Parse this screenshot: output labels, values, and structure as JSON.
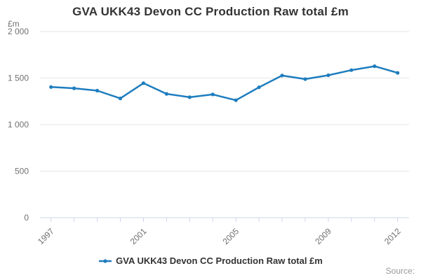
{
  "page": {
    "title": "GVA UKK43 Devon CC Production Raw total £m",
    "y_axis_unit_label": "£m",
    "source_label": "Source:"
  },
  "legend": {
    "position": "bottom-center",
    "items": [
      {
        "label": "GVA UKK43 Devon CC Production Raw total £m",
        "marker": "line-dot-icon"
      }
    ]
  },
  "colors": {
    "series_blue": "#1e7dbe",
    "grid_line": "#e6e6e6",
    "axis_line": "#ccd6eb",
    "tick_label": "#707070",
    "title_text": "#333333",
    "legend_text": "#333333",
    "source_text": "#999999",
    "background": "#ffffff"
  },
  "chart_data": {
    "type": "line",
    "title": "GVA UKK43 Devon CC Production Raw total £m",
    "x": [
      1997,
      1998,
      1999,
      2000,
      2001,
      2002,
      2003,
      2004,
      2005,
      2006,
      2007,
      2008,
      2009,
      2010,
      2011,
      2012
    ],
    "series": [
      {
        "name": "GVA UKK43 Devon CC Production Raw total £m",
        "values": [
          1404,
          1390,
          1365,
          1281,
          1445,
          1330,
          1294,
          1324,
          1262,
          1401,
          1527,
          1489,
          1530,
          1585,
          1627,
          1556
        ]
      }
    ],
    "xlabel": "",
    "ylabel": "£m",
    "ylim": [
      0,
      2000
    ],
    "y_ticks": [
      0,
      500,
      1000,
      1500,
      2000
    ],
    "y_tick_labels": [
      "0",
      "500",
      "1 000",
      "1 500",
      "2 000"
    ],
    "x_tick_years_labeled": [
      1997,
      2001,
      2005,
      2009,
      2012
    ],
    "grid": "horizontal",
    "legend_position": "bottom",
    "marker": "circle"
  }
}
